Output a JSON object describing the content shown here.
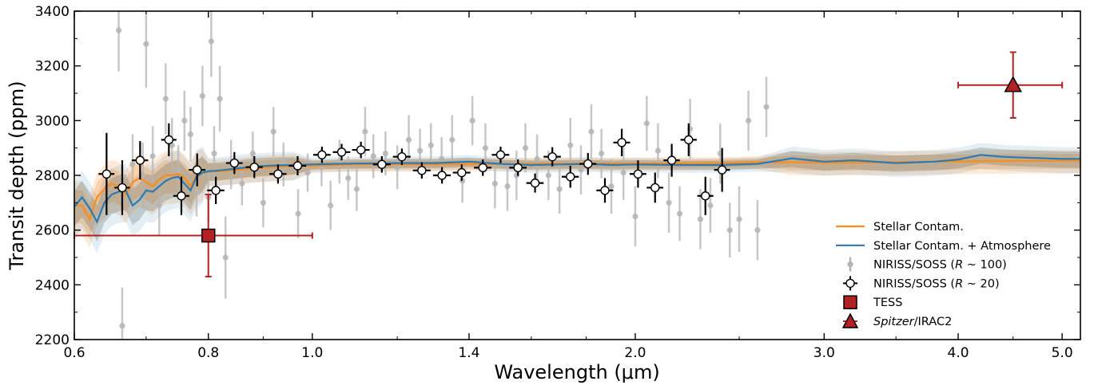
{
  "chart_data": {
    "type": "scatter",
    "xlabel": "Wavelength (μm)",
    "ylabel": "Transit depth (ppm)",
    "x_scale": "log",
    "xlim": [
      0.6,
      5.2
    ],
    "ylim": [
      2200,
      3400
    ],
    "x_major_ticks": [
      0.6,
      0.8,
      1.0,
      1.4,
      2.0,
      3.0,
      4.0,
      5.0
    ],
    "x_tick_labels": [
      "0.6",
      "0.8",
      "1.0",
      "1.4",
      "2.0",
      "3.0",
      "4.0",
      "5.0"
    ],
    "y_ticks": [
      2200,
      2400,
      2600,
      2800,
      3000,
      3200,
      3400
    ],
    "y_tick_labels": [
      "2200",
      "2400",
      "2600",
      "2800",
      "3000",
      "3200",
      "3400"
    ],
    "legend_position": "lower-right",
    "colors": {
      "stellar_contam": "#ff8c1a",
      "stellar_atm": "#2a7bb5",
      "r100_points": "#b4b4b4",
      "tess_spitzer": "#b22222",
      "r20_points": "#000000"
    },
    "series": [
      {
        "name": "Stellar Contam.",
        "kind": "line",
        "color": "#ff8c1a",
        "x": [
          0.6,
          0.61,
          0.62,
          0.63,
          0.64,
          0.65,
          0.66,
          0.67,
          0.68,
          0.69,
          0.7,
          0.71,
          0.72,
          0.73,
          0.74,
          0.75,
          0.76,
          0.77,
          0.78,
          0.79,
          0.8,
          0.82,
          0.85,
          0.88,
          0.92,
          0.96,
          1.0,
          1.05,
          1.1,
          1.2,
          1.3,
          1.4,
          1.5,
          1.6,
          1.7,
          1.8,
          1.9,
          2.0,
          2.2,
          2.4,
          2.6,
          2.8,
          3.0,
          3.2,
          3.5,
          3.8,
          4.2,
          4.6,
          5.0,
          5.2
        ],
        "y": [
          2690,
          2690,
          2640,
          2720,
          2750,
          2770,
          2760,
          2730,
          2775,
          2790,
          2775,
          2760,
          2785,
          2800,
          2800,
          2805,
          2790,
          2760,
          2800,
          2810,
          2815,
          2815,
          2820,
          2825,
          2830,
          2835,
          2835,
          2838,
          2840,
          2840,
          2840,
          2842,
          2842,
          2842,
          2843,
          2843,
          2843,
          2843,
          2844,
          2845,
          2848,
          2848,
          2846,
          2847,
          2848,
          2850,
          2852,
          2853,
          2853,
          2853
        ]
      },
      {
        "name": "Stellar Contam. + Atmosphere",
        "kind": "line",
        "color": "#2a7bb5",
        "x": [
          0.6,
          0.61,
          0.62,
          0.63,
          0.64,
          0.65,
          0.66,
          0.67,
          0.68,
          0.69,
          0.7,
          0.71,
          0.72,
          0.73,
          0.74,
          0.75,
          0.76,
          0.77,
          0.78,
          0.79,
          0.8,
          0.82,
          0.85,
          0.88,
          0.92,
          0.96,
          1.0,
          1.05,
          1.1,
          1.2,
          1.3,
          1.4,
          1.5,
          1.6,
          1.7,
          1.8,
          1.9,
          2.0,
          2.2,
          2.4,
          2.6,
          2.8,
          3.0,
          3.2,
          3.5,
          3.8,
          4.0,
          4.2,
          4.4,
          4.6,
          5.0,
          5.2
        ],
        "y": [
          2685,
          2720,
          2680,
          2630,
          2700,
          2730,
          2740,
          2745,
          2690,
          2710,
          2745,
          2740,
          2760,
          2780,
          2790,
          2795,
          2770,
          2745,
          2795,
          2810,
          2815,
          2818,
          2825,
          2832,
          2836,
          2838,
          2840,
          2842,
          2843,
          2845,
          2845,
          2850,
          2842,
          2838,
          2840,
          2842,
          2838,
          2840,
          2838,
          2838,
          2842,
          2862,
          2850,
          2855,
          2845,
          2850,
          2858,
          2875,
          2868,
          2865,
          2860,
          2860
        ]
      },
      {
        "name": "NIRISS/SOSS (R ~ 100)",
        "kind": "errorbar",
        "color": "#b4b4b4",
        "x": [
          0.66,
          0.665,
          0.68,
          0.695,
          0.7,
          0.71,
          0.72,
          0.73,
          0.74,
          0.75,
          0.76,
          0.77,
          0.78,
          0.79,
          0.8,
          0.805,
          0.81,
          0.82,
          0.83,
          0.84,
          0.86,
          0.88,
          0.9,
          0.92,
          0.94,
          0.97,
          0.99,
          1.02,
          1.04,
          1.06,
          1.08,
          1.1,
          1.12,
          1.14,
          1.17,
          1.2,
          1.23,
          1.26,
          1.29,
          1.32,
          1.35,
          1.38,
          1.41,
          1.45,
          1.48,
          1.52,
          1.55,
          1.58,
          1.62,
          1.66,
          1.7,
          1.74,
          1.78,
          1.82,
          1.86,
          1.9,
          1.95,
          2.0,
          2.05,
          2.1,
          2.15,
          2.2,
          2.25,
          2.3,
          2.35,
          2.4,
          2.45,
          2.5,
          2.55,
          2.6,
          2.65
        ],
        "y": [
          3330,
          2250,
          2840,
          2800,
          3280,
          2870,
          2690,
          3080,
          2910,
          2820,
          3000,
          2950,
          2740,
          3090,
          2720,
          3290,
          2880,
          3080,
          2500,
          2840,
          2770,
          2880,
          2700,
          2960,
          2840,
          2660,
          2810,
          2830,
          2690,
          2850,
          2790,
          2750,
          2960,
          2870,
          2880,
          2830,
          2930,
          2890,
          2910,
          2860,
          2930,
          2780,
          3000,
          2900,
          2770,
          2760,
          2800,
          2900,
          2860,
          2800,
          2750,
          2910,
          2820,
          2960,
          2880,
          2760,
          2810,
          2650,
          2990,
          2890,
          2700,
          2660,
          2970,
          2640,
          2690,
          2880,
          2600,
          2640,
          3000,
          2600,
          3050
        ],
        "yerr": [
          150,
          140,
          110,
          120,
          160,
          110,
          110,
          130,
          100,
          90,
          110,
          100,
          90,
          110,
          90,
          130,
          100,
          120,
          150,
          90,
          80,
          80,
          90,
          90,
          80,
          90,
          70,
          70,
          90,
          80,
          80,
          80,
          90,
          80,
          80,
          80,
          90,
          80,
          80,
          80,
          90,
          80,
          90,
          90,
          90,
          90,
          90,
          90,
          90,
          90,
          90,
          100,
          90,
          100,
          90,
          100,
          100,
          110,
          100,
          100,
          110,
          100,
          110,
          110,
          100,
          110,
          100,
          120,
          110,
          110,
          110
        ]
      },
      {
        "name": "NIRISS/SOSS (R ~ 20)",
        "kind": "errorbar",
        "color": "#000000",
        "x": [
          0.643,
          0.665,
          0.691,
          0.735,
          0.755,
          0.781,
          0.813,
          0.846,
          0.883,
          0.929,
          0.969,
          1.021,
          1.065,
          1.11,
          1.161,
          1.212,
          1.265,
          1.321,
          1.378,
          1.442,
          1.498,
          1.555,
          1.613,
          1.674,
          1.74,
          1.807,
          1.874,
          1.943,
          2.012,
          2.087,
          2.163,
          2.243,
          2.325,
          2.41
        ],
        "y": [
          2805,
          2755,
          2855,
          2930,
          2725,
          2820,
          2745,
          2845,
          2830,
          2805,
          2835,
          2875,
          2885,
          2893,
          2840,
          2868,
          2818,
          2800,
          2810,
          2828,
          2875,
          2828,
          2772,
          2868,
          2795,
          2842,
          2745,
          2920,
          2805,
          2755,
          2855,
          2930,
          2725,
          2820
        ],
        "xerr": [
          0.011,
          0.011,
          0.012,
          0.012,
          0.013,
          0.014,
          0.015,
          0.015,
          0.016,
          0.017,
          0.018,
          0.019,
          0.02,
          0.021,
          0.022,
          0.023,
          0.024,
          0.025,
          0.026,
          0.027,
          0.028,
          0.029,
          0.03,
          0.031,
          0.032,
          0.033,
          0.034,
          0.035,
          0.036,
          0.037,
          0.038,
          0.039,
          0.04,
          0.041
        ],
        "yerr": [
          150,
          100,
          70,
          60,
          70,
          60,
          50,
          40,
          40,
          35,
          35,
          30,
          30,
          30,
          30,
          30,
          30,
          30,
          30,
          30,
          30,
          30,
          35,
          35,
          40,
          40,
          45,
          50,
          50,
          55,
          60,
          60,
          70,
          80
        ]
      },
      {
        "name": "TESS",
        "kind": "errorbar",
        "marker": "square",
        "color": "#b22222",
        "x": [
          0.8
        ],
        "y": [
          2580
        ],
        "xerr_low": [
          0.2
        ],
        "xerr_high": [
          0.2
        ],
        "yerr": [
          150
        ]
      },
      {
        "name": "Spitzer/IRAC2",
        "kind": "errorbar",
        "marker": "triangle",
        "color": "#b22222",
        "x": [
          4.5
        ],
        "y": [
          3130
        ],
        "xerr_low": [
          0.5
        ],
        "xerr_high": [
          0.5
        ],
        "yerr": [
          120
        ]
      }
    ]
  },
  "legend": {
    "items": [
      {
        "label": "Stellar Contam.",
        "icon": "orange-line-icon"
      },
      {
        "label": "Stellar Contam. + Atmosphere",
        "icon": "blue-line-icon"
      },
      {
        "label_prefix": "NIRISS/SOSS (",
        "label_italic": "R",
        "label_suffix": " ~ 100)",
        "icon": "gray-errorbar-icon"
      },
      {
        "label_prefix": "NIRISS/SOSS (",
        "label_italic": "R",
        "label_suffix": " ~ 20)",
        "icon": "open-circle-errorbar-icon"
      },
      {
        "label": "TESS",
        "icon": "red-square-icon"
      },
      {
        "label_italic": "Spitzer",
        "label_suffix": "/IRAC2",
        "icon": "red-triangle-icon"
      }
    ]
  }
}
